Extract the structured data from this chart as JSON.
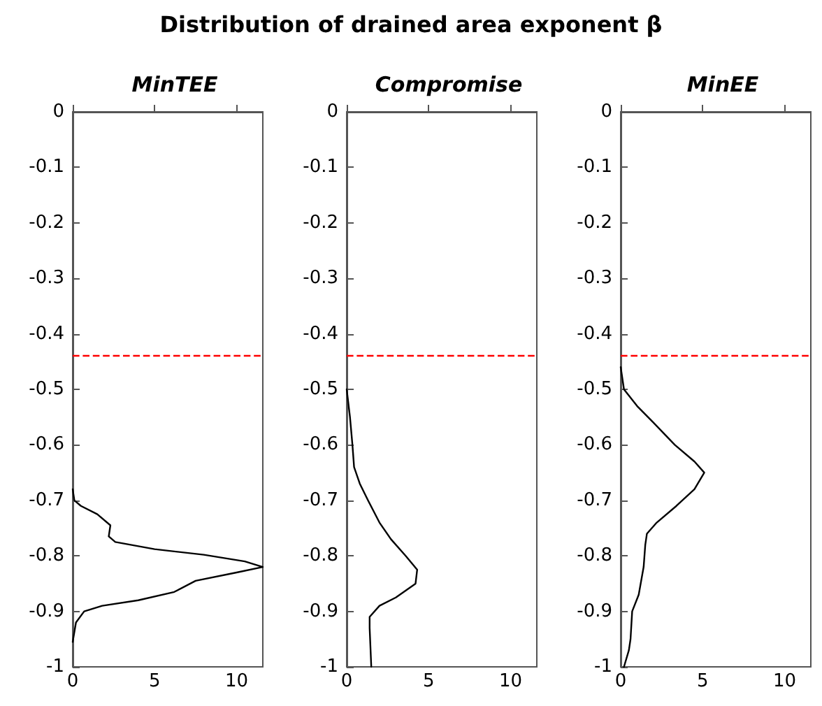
{
  "chart_data": [
    {
      "type": "line",
      "title": "MinTEE",
      "annotations": [
        "Distribution of drained area exponent β"
      ],
      "grid": false,
      "marker": "none",
      "line_style": "solid",
      "series": [
        {
          "color": "#000000",
          "x": [
            0,
            0.1,
            0.5,
            1.5,
            2.3,
            2.2,
            2.6,
            5,
            8,
            10.5,
            11.6,
            10,
            7.5,
            6.2,
            4,
            1.8,
            0.7,
            0.2,
            0
          ],
          "values": [
            -0.68,
            -0.7,
            -0.71,
            -0.725,
            -0.745,
            -0.765,
            -0.775,
            -0.788,
            -0.798,
            -0.81,
            -0.82,
            -0.83,
            -0.845,
            -0.865,
            -0.88,
            -0.89,
            -0.9,
            -0.92,
            -0.955
          ]
        }
      ],
      "xlim": [
        0,
        11.6
      ],
      "xticks": [
        0,
        5,
        10
      ],
      "ylim": [
        -1,
        0
      ],
      "yticks": [
        -1,
        -0.9,
        -0.8,
        -0.7,
        -0.6,
        -0.5,
        -0.4,
        -0.3,
        -0.2,
        -0.1,
        0
      ],
      "ref_lines": [
        {
          "axis": "y",
          "value": -0.44,
          "color": "#ff0000",
          "line_style": "dashed"
        }
      ]
    },
    {
      "type": "line",
      "title": "Compromise",
      "grid": false,
      "marker": "none",
      "line_style": "solid",
      "series": [
        {
          "color": "#000000",
          "x": [
            0,
            0.2,
            0.35,
            0.45,
            0.8,
            1.3,
            2,
            2.7,
            3.6,
            4.3,
            4.2,
            3,
            2,
            1.4,
            1.4,
            1.5
          ],
          "values": [
            -0.5,
            -0.55,
            -0.6,
            -0.64,
            -0.67,
            -0.7,
            -0.74,
            -0.77,
            -0.8,
            -0.825,
            -0.85,
            -0.875,
            -0.89,
            -0.91,
            -0.93,
            -1
          ]
        }
      ],
      "xlim": [
        0,
        11.6
      ],
      "xticks": [
        0,
        5,
        10
      ],
      "ylim": [
        -1,
        0
      ],
      "yticks": [
        -1,
        -0.9,
        -0.8,
        -0.7,
        -0.6,
        -0.5,
        -0.4,
        -0.3,
        -0.2,
        -0.1,
        0
      ],
      "ref_lines": [
        {
          "axis": "y",
          "value": -0.44,
          "color": "#ff0000",
          "line_style": "dashed"
        }
      ]
    },
    {
      "type": "line",
      "title": "MinEE",
      "grid": false,
      "marker": "none",
      "line_style": "solid",
      "series": [
        {
          "color": "#000000",
          "x": [
            0,
            0.2,
            1,
            2,
            3.3,
            4.5,
            5.1,
            4.5,
            3.4,
            2.2,
            1.6,
            1.5,
            1.4,
            1.1,
            0.7,
            0.6,
            0.5,
            0.2
          ],
          "values": [
            -0.46,
            -0.5,
            -0.53,
            -0.56,
            -0.6,
            -0.63,
            -0.65,
            -0.68,
            -0.71,
            -0.74,
            -0.76,
            -0.78,
            -0.82,
            -0.87,
            -0.9,
            -0.95,
            -0.97,
            -1
          ]
        }
      ],
      "xlim": [
        0,
        11.6
      ],
      "xticks": [
        0,
        5,
        10
      ],
      "ylim": [
        -1,
        0
      ],
      "yticks": [
        -1,
        -0.9,
        -0.8,
        -0.7,
        -0.6,
        -0.5,
        -0.4,
        -0.3,
        -0.2,
        -0.1,
        0
      ],
      "ref_lines": [
        {
          "axis": "y",
          "value": -0.44,
          "color": "#ff0000",
          "line_style": "dashed"
        }
      ]
    }
  ]
}
